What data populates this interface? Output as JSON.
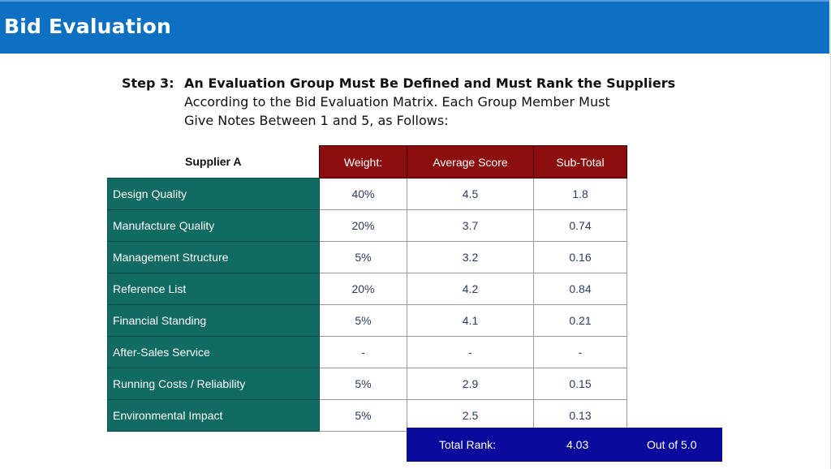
{
  "header": {
    "title": "Bid Evaluation"
  },
  "step": {
    "label": "Step 3:",
    "heading": "An Evaluation Group Must Be Defined and Must Rank the Suppliers",
    "line1": "According to the Bid Evaluation Matrix. Each Group Member Must",
    "line2": "Give Notes Between 1 and 5, as Follows:"
  },
  "table": {
    "supplier": "Supplier A",
    "columns": [
      "Weight:",
      "Average Score",
      "Sub-Total"
    ],
    "rows": [
      {
        "criterion": "Design Quality",
        "weight": "40%",
        "average": "4.5",
        "subtotal": "1.8"
      },
      {
        "criterion": "Manufacture Quality",
        "weight": "20%",
        "average": "3.7",
        "subtotal": "0.74"
      },
      {
        "criterion": "Management Structure",
        "weight": "5%",
        "average": "3.2",
        "subtotal": "0.16"
      },
      {
        "criterion": "Reference List",
        "weight": "20%",
        "average": "4.2",
        "subtotal": "0.84"
      },
      {
        "criterion": "Financial Standing",
        "weight": "5%",
        "average": "4.1",
        "subtotal": "0.21"
      },
      {
        "criterion": "After-Sales Service",
        "weight": "-",
        "average": "-",
        "subtotal": "-"
      },
      {
        "criterion": "Running Costs / Reliability",
        "weight": "5%",
        "average": "2.9",
        "subtotal": "0.15"
      },
      {
        "criterion": "Environmental Impact",
        "weight": "5%",
        "average": "2.5",
        "subtotal": "0.13"
      }
    ]
  },
  "total": {
    "label": "Total Rank:",
    "value": "4.03",
    "out_of": "Out of 5.0"
  },
  "colors": {
    "title_bar": "#0d70c3",
    "header_cells": "#8b0d0d",
    "criterion_cells": "#116b62",
    "total_bar": "#0a0a9c"
  }
}
